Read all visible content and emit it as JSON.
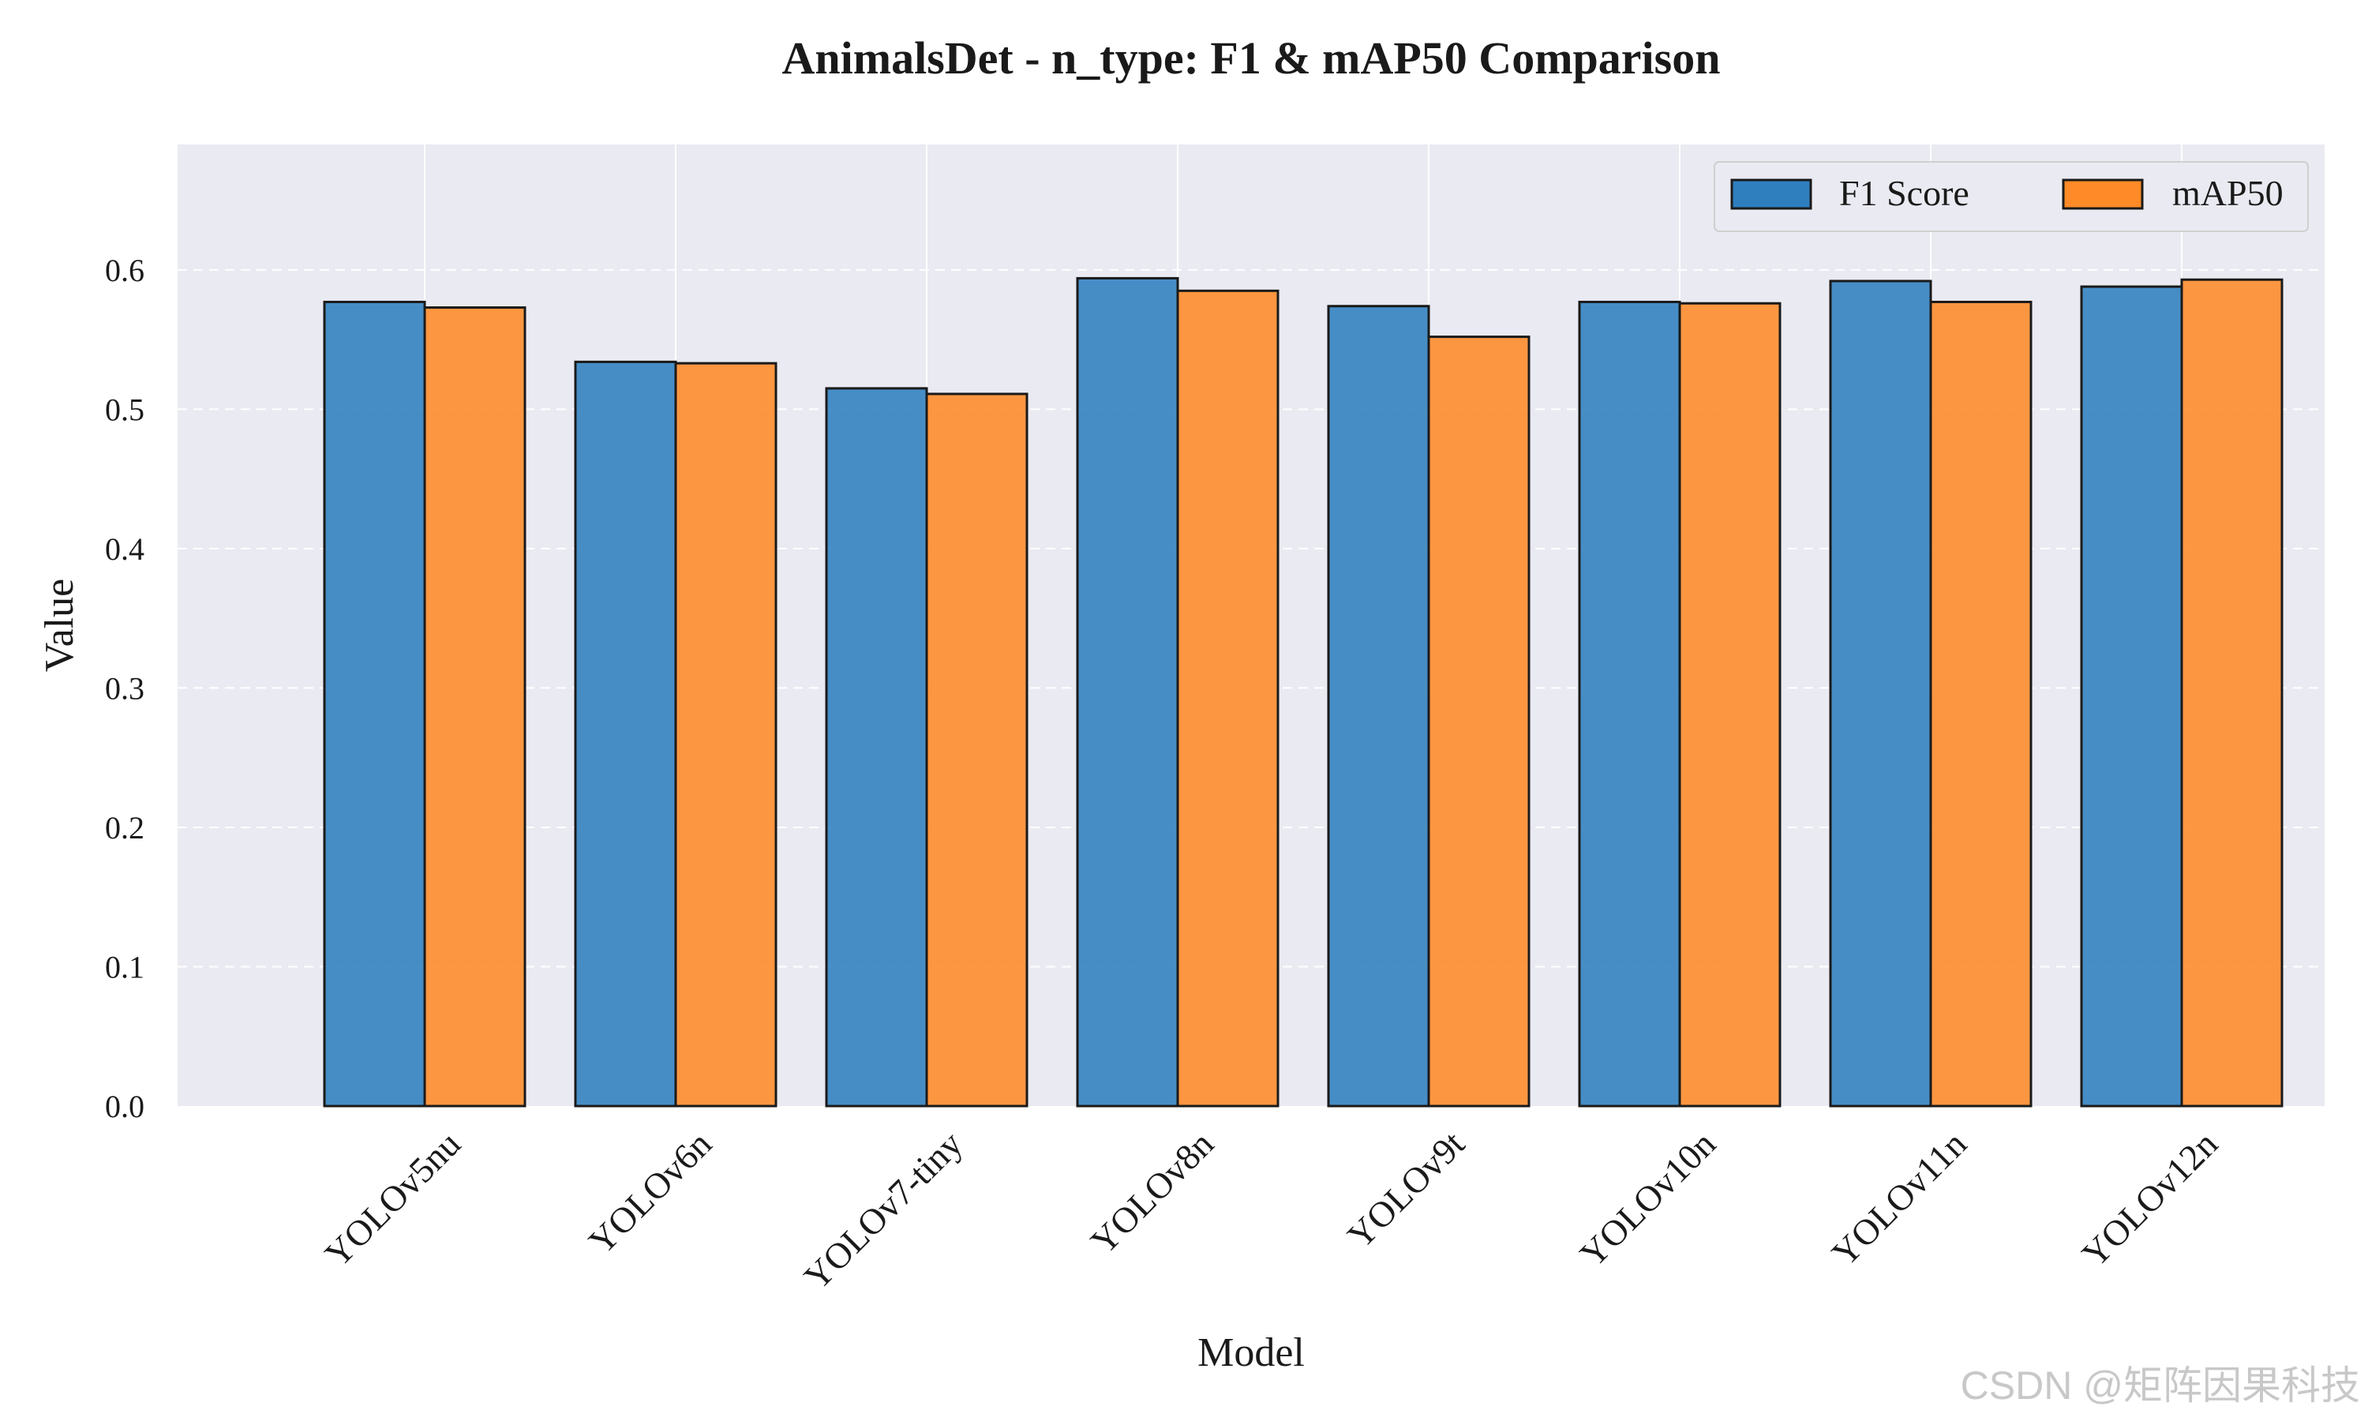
{
  "watermark": "CSDN @矩阵因果科技",
  "colors": {
    "plot_background": "#eaeaf2",
    "grid": "#ffffff",
    "bar_edge": "#1a1a1a",
    "text": "#1a1a1a",
    "watermark": "#c8c8c8"
  },
  "chart_data": {
    "type": "bar",
    "title": "AnimalsDet - n_type: F1 & mAP50 Comparison",
    "xlabel": "Model",
    "ylabel": "Value",
    "categories": [
      "YOLOv5nu",
      "YOLOv6n",
      "YOLOv7-tiny",
      "YOLOv8n",
      "YOLOv9t",
      "YOLOv10n",
      "YOLOv11n",
      "YOLOv12n"
    ],
    "series": [
      {
        "name": "F1 Score",
        "color": "#2f7fbf",
        "values": [
          0.577,
          0.534,
          0.515,
          0.594,
          0.574,
          0.577,
          0.592,
          0.588
        ]
      },
      {
        "name": "mAP50",
        "color": "#ff8a27",
        "values": [
          0.573,
          0.533,
          0.511,
          0.585,
          0.552,
          0.576,
          0.577,
          0.593
        ]
      }
    ],
    "ylim": [
      0,
      0.69
    ],
    "yticks": [
      0.0,
      0.1,
      0.2,
      0.3,
      0.4,
      0.5,
      0.6
    ],
    "ytick_labels": [
      "0.0",
      "0.1",
      "0.2",
      "0.3",
      "0.4",
      "0.5",
      "0.6"
    ],
    "grid": true,
    "legend_position": "top-right",
    "legend_columns": 2,
    "xtick_rotation": 45
  }
}
